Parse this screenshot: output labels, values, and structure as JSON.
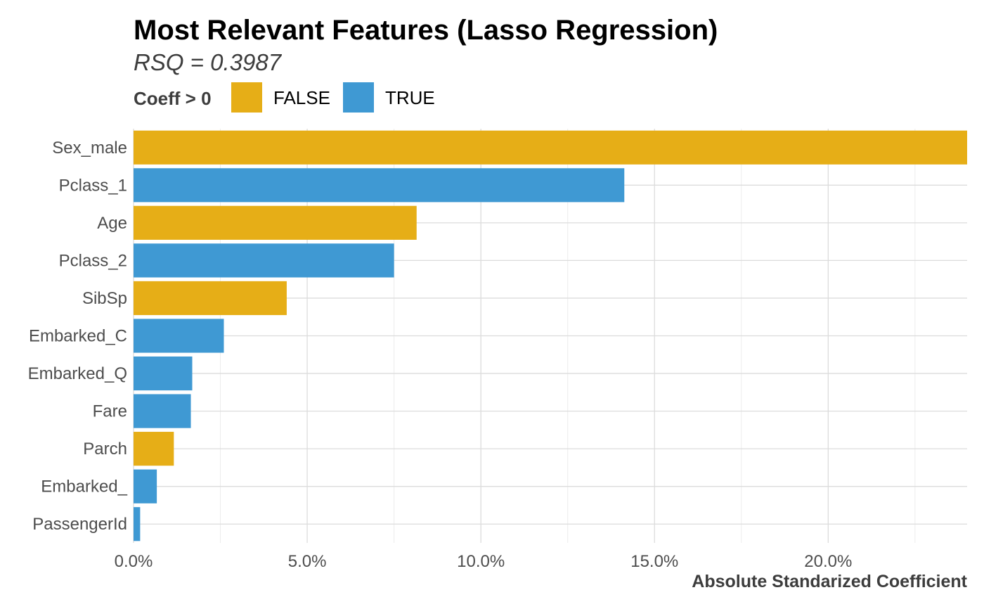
{
  "chart_data": {
    "type": "bar",
    "orientation": "horizontal",
    "title": "Most Relevant Features (Lasso Regression)",
    "subtitle": "RSQ = 0.3987",
    "xlabel": "Absolute Standarized Coefficient",
    "ylabel": "",
    "legend": {
      "title": "Coeff > 0",
      "placement": "top-left",
      "entries": [
        {
          "label": "FALSE",
          "color": "#E6AE17"
        },
        {
          "label": "TRUE",
          "color": "#3F99D3"
        }
      ]
    },
    "categories": [
      "Sex_male",
      "Pclass_1",
      "Age",
      "Pclass_2",
      "SibSp",
      "Embarked_C",
      "Embarked_Q",
      "Fare",
      "Parch",
      "Embarked_",
      "PassengerId"
    ],
    "values": [
      0.24,
      0.1413,
      0.0815,
      0.075,
      0.0441,
      0.026,
      0.0169,
      0.0165,
      0.0116,
      0.0067,
      0.0019
    ],
    "positive": [
      false,
      true,
      false,
      true,
      false,
      true,
      true,
      true,
      false,
      true,
      true
    ],
    "xlim": [
      0,
      0.24
    ],
    "x_ticks": [
      0,
      0.05,
      0.1,
      0.15,
      0.2
    ],
    "x_tick_labels": [
      "0.0%",
      "5.0%",
      "10.0%",
      "15.0%",
      "20.0%"
    ],
    "grid": true
  }
}
